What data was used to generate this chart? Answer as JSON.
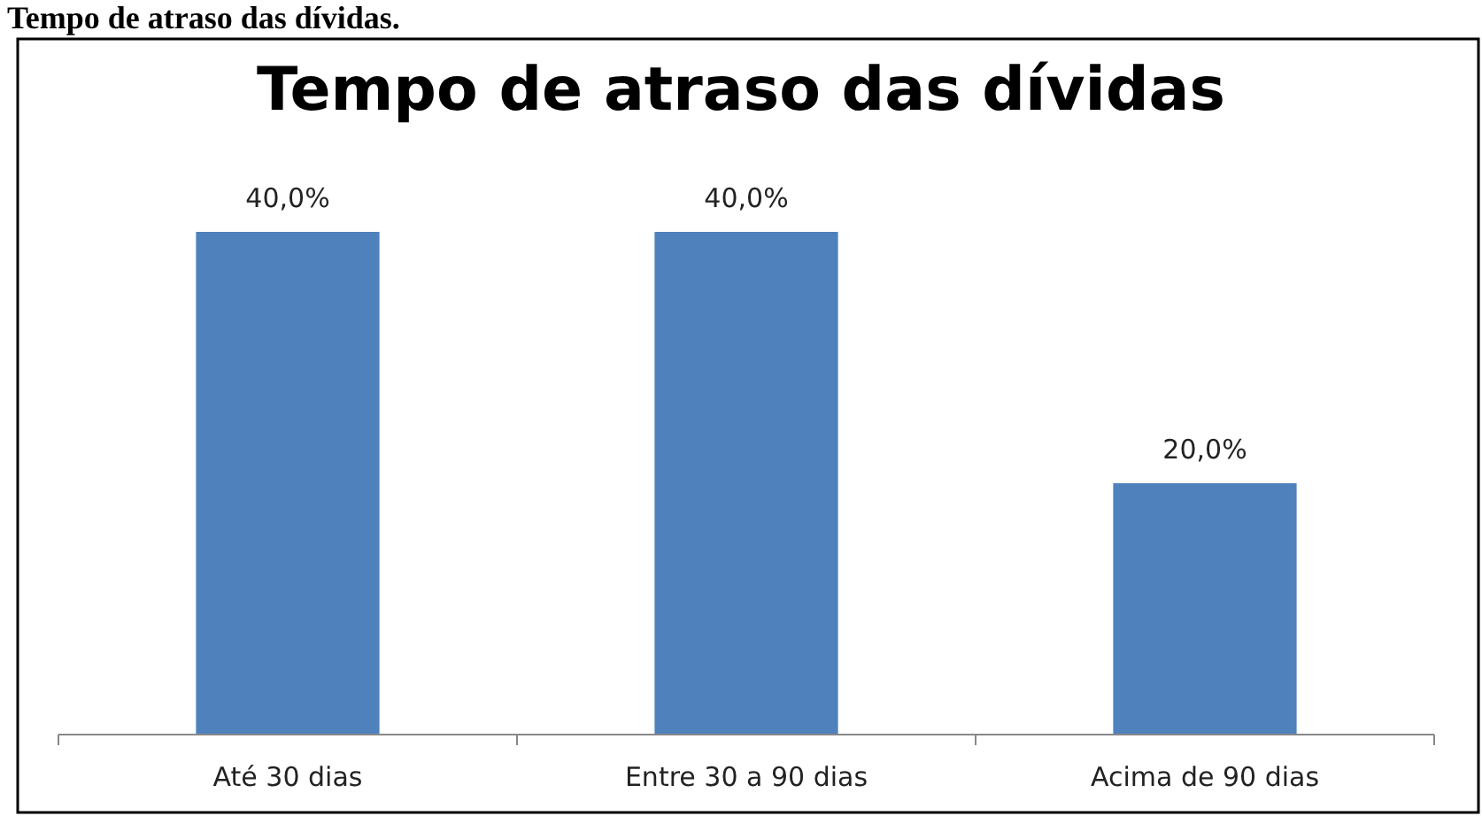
{
  "chart_data": {
    "type": "bar",
    "title": "Tempo de atraso das dívidas",
    "categories": [
      "Até 30 dias",
      "Entre 30 a 90 dias",
      "Acima de 90 dias"
    ],
    "values": [
      40,
      40,
      20
    ],
    "value_labels": [
      "40,0%",
      "40,0%",
      "20,0%"
    ],
    "color": "#4f81bd",
    "annotations": [
      "Tempo de atraso das dívidas."
    ]
  }
}
